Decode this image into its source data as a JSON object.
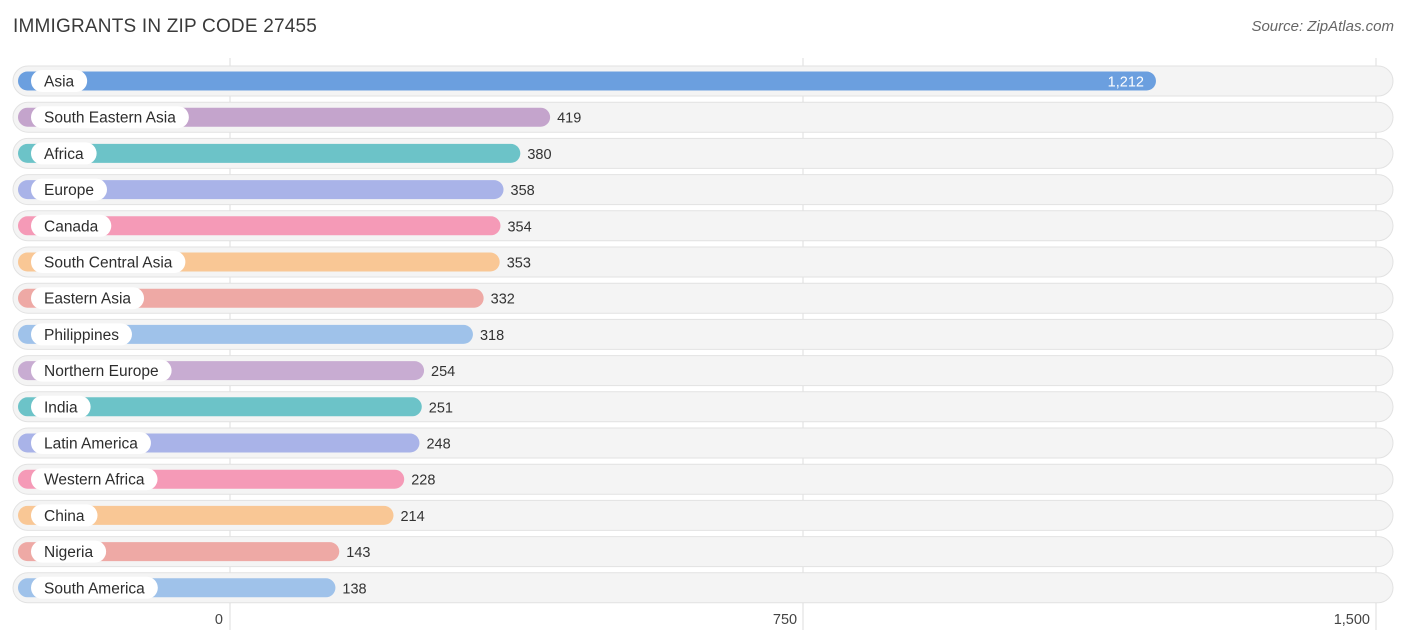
{
  "header": {
    "title": "IMMIGRANTS IN ZIP CODE 27455",
    "source": "Source: ZipAtlas.com"
  },
  "chart_data": {
    "type": "bar",
    "orientation": "horizontal",
    "title": "IMMIGRANTS IN ZIP CODE 27455",
    "categories": [
      "Asia",
      "South Eastern Asia",
      "Africa",
      "Europe",
      "Canada",
      "South Central Asia",
      "Eastern Asia",
      "Philippines",
      "Northern Europe",
      "India",
      "Latin America",
      "Western Africa",
      "China",
      "Nigeria",
      "South America"
    ],
    "values": [
      1212,
      419,
      380,
      358,
      354,
      353,
      332,
      318,
      254,
      251,
      248,
      228,
      214,
      143,
      138
    ],
    "value_labels": [
      "1,212",
      "419",
      "380",
      "358",
      "354",
      "353",
      "332",
      "318",
      "254",
      "251",
      "248",
      "228",
      "214",
      "143",
      "138"
    ],
    "colors": [
      "#6b9fdf",
      "#c4a4cc",
      "#6cc3c8",
      "#a9b3e8",
      "#f59ab7",
      "#f9c795",
      "#eea9a5",
      "#9fc2ea",
      "#c8acd2",
      "#6cc3c8",
      "#a9b3e8",
      "#f59ab7",
      "#f9c795",
      "#eea9a5",
      "#9fc2ea"
    ],
    "xlim": [
      0,
      1500
    ],
    "xticks": [
      0,
      750,
      1500
    ],
    "xtick_labels": [
      "0",
      "750",
      "1,500"
    ],
    "grid": true
  }
}
